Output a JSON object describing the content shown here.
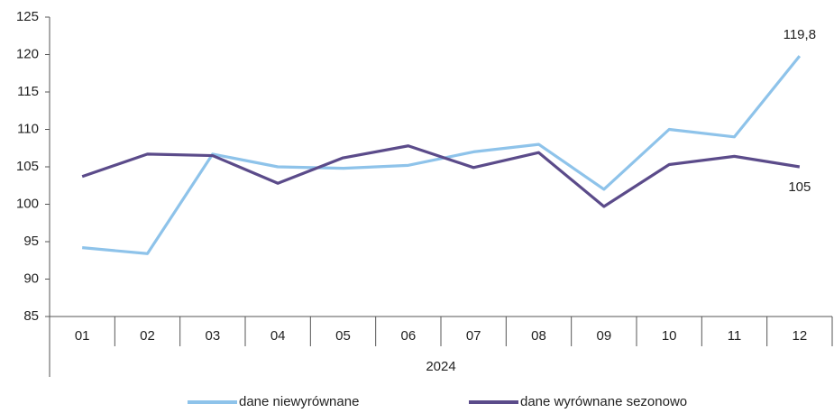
{
  "chart_data": {
    "type": "line",
    "categories": [
      "01",
      "02",
      "03",
      "04",
      "05",
      "06",
      "07",
      "08",
      "09",
      "10",
      "11",
      "12"
    ],
    "x_group": "2024",
    "series": [
      {
        "name": "dane niewyrównane",
        "color": "#8ec3ea",
        "values": [
          94.2,
          93.4,
          106.7,
          105.0,
          104.8,
          105.2,
          107.0,
          108.0,
          102.0,
          110.0,
          109.0,
          119.8
        ],
        "value_labels": [
          null,
          null,
          null,
          null,
          null,
          null,
          null,
          null,
          null,
          null,
          null,
          "119,8"
        ]
      },
      {
        "name": "dane wyrównane sezonowo",
        "color": "#5b4b8a",
        "values": [
          103.7,
          106.7,
          106.5,
          102.8,
          106.2,
          107.8,
          104.9,
          106.9,
          99.7,
          105.3,
          106.4,
          105.0
        ],
        "value_labels": [
          null,
          null,
          null,
          null,
          null,
          null,
          null,
          null,
          null,
          null,
          null,
          "105"
        ]
      }
    ],
    "ylim": [
      85,
      125
    ],
    "yticks": [
      85,
      90,
      95,
      100,
      105,
      110,
      115,
      120,
      125
    ],
    "grid": false,
    "legend": "bottom"
  }
}
